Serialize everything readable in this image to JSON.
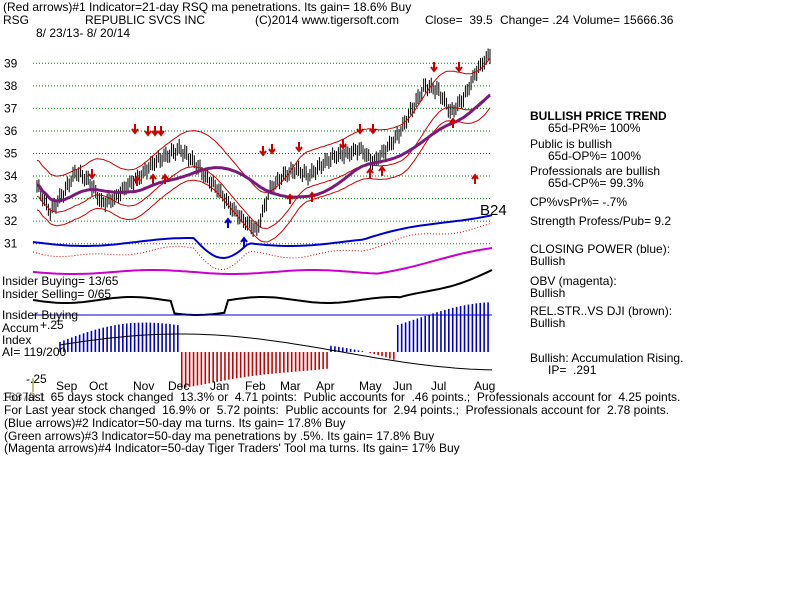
{
  "header": {
    "line1": "(Red arrows)#1 Indicator=21-day RSQ ma penetrations. Its gain= 18.6% Buy",
    "ticker": "RSG",
    "company": "REPUBLIC SVCS INC",
    "copyright": "(C)2014 www.tigersoft.com",
    "close": "Close=  39.5",
    "change": "Change= .24",
    "volume": "Volume= 15666.36",
    "dates": "8/ 23/13- 8/ 20/14"
  },
  "chart_data": {
    "type": "line",
    "x_months": [
      "Sep",
      "Oct",
      "Nov",
      "Dec",
      "Jan",
      "Feb",
      "Mar",
      "Apr",
      "May",
      "Jun",
      "Jul",
      "Aug"
    ],
    "price_ticks": [
      "39",
      "38",
      "37",
      "36",
      "35",
      "34",
      "33",
      "32",
      "31"
    ],
    "ylim": [
      30.5,
      39.5
    ],
    "series": [
      {
        "name": "CLOSING POWER (blue)",
        "color": "#0000cc"
      },
      {
        "name": "OBV (magenta)",
        "color": "#cc00cc"
      },
      {
        "name": "REL.STR..VS DJI (brown)",
        "color": "#7a3c10"
      }
    ],
    "price_close": [
      33.6,
      32.4,
      33.2,
      34.2,
      33.8,
      32.8,
      33.0,
      33.6,
      34.0,
      34.6,
      34.9,
      35.2,
      34.7,
      34.0,
      33.4,
      32.6,
      32.0,
      31.6,
      33.4,
      34.0,
      34.3,
      34.0,
      34.5,
      34.9,
      35.0,
      35.2,
      34.6,
      35.2,
      35.9,
      37.0,
      38.0,
      37.8,
      36.8,
      37.5,
      38.7,
      39.4
    ],
    "accum_ticks": [
      "+.25",
      "-.25"
    ],
    "annotations": [
      "B24"
    ]
  },
  "chart_labels": {
    "insider_buying": "Insider Buying= 13/65",
    "insider_selling": "Insider Selling= 0/65",
    "insider_buying2": "Insider Buying",
    "accum_label": "Accum",
    "index_label": "Index",
    "ai_label": "AI= 119/200"
  },
  "right_panel": {
    "trend_title": "BULLISH PRICE TREND",
    "pr": "65d-PR%= 100%",
    "public": "Public is bullish",
    "op": "65d-OP%= 100%",
    "pros": "Professionals are bullish",
    "cp": "65d-CP%= 99.3%",
    "cpvspr": "CP%vsPr%= -.7%",
    "strength": "Strength Profess/Pub= 9.2",
    "closing_power": "CLOSING POWER (blue):",
    "cp_state": "Bullish",
    "obv": "OBV (magenta):",
    "obv_state": "Bullish",
    "relstr": "REL.STR..VS DJI (brown):",
    "relstr_state": "Bullish",
    "accum": "Bullish: Accumulation Rising.",
    "ip": "IP=  .291"
  },
  "footer": {
    "line1": "For last  65 days stock changed  13.3% or  4.71 points:  Public accounts for  .46 points.;  Professionals account for  4.25 points.",
    "line1_overlay": "16379.1",
    "line2": "For Last year stock changed  16.9% or  5.72 points:  Public accounts for  2.94 points.;  Professionals account for  2.78 points.",
    "line3": "(Blue arrows)#2 Indicator=50-day ma turns. Its gain= 17.8% Buy",
    "line4": "(Green arrows)#3 Indicator=50-day ma penetrations by .5%. Its gain= 17.8% Buy",
    "line5": "(Magenta arrows)#4 Indicator=50-day Tiger Traders' Tool ma turns. Its gain= 17% Buy"
  }
}
